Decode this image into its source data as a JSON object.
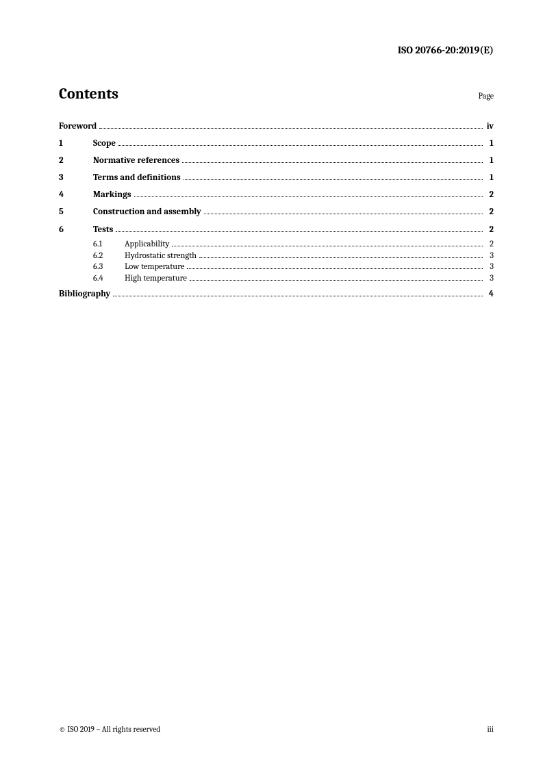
{
  "header": {
    "doc_ref": "ISO 20766-20:2019(E)"
  },
  "contents": {
    "title": "Contents",
    "page_label": "Page"
  },
  "toc": {
    "foreword": {
      "title": "Foreword",
      "page": "iv"
    },
    "sections": [
      {
        "num": "1",
        "title": "Scope",
        "page": "1"
      },
      {
        "num": "2",
        "title": "Normative references",
        "page": "1"
      },
      {
        "num": "3",
        "title": "Terms and definitions",
        "page": "1"
      },
      {
        "num": "4",
        "title": "Markings",
        "page": "2"
      },
      {
        "num": "5",
        "title": "Construction and assembly",
        "page": "2"
      },
      {
        "num": "6",
        "title": "Tests",
        "page": "2",
        "subs": [
          {
            "num": "6.1",
            "title": "Applicability",
            "page": "2"
          },
          {
            "num": "6.2",
            "title": "Hydrostatic strength",
            "page": "3"
          },
          {
            "num": "6.3",
            "title": "Low temperature",
            "page": "3"
          },
          {
            "num": "6.4",
            "title": "High temperature",
            "page": "3"
          }
        ]
      }
    ],
    "bibliography": {
      "title": "Bibliography",
      "page": "4"
    }
  },
  "footer": {
    "copyright": "© ISO 2019 – All rights reserved",
    "page_num": "iii"
  }
}
